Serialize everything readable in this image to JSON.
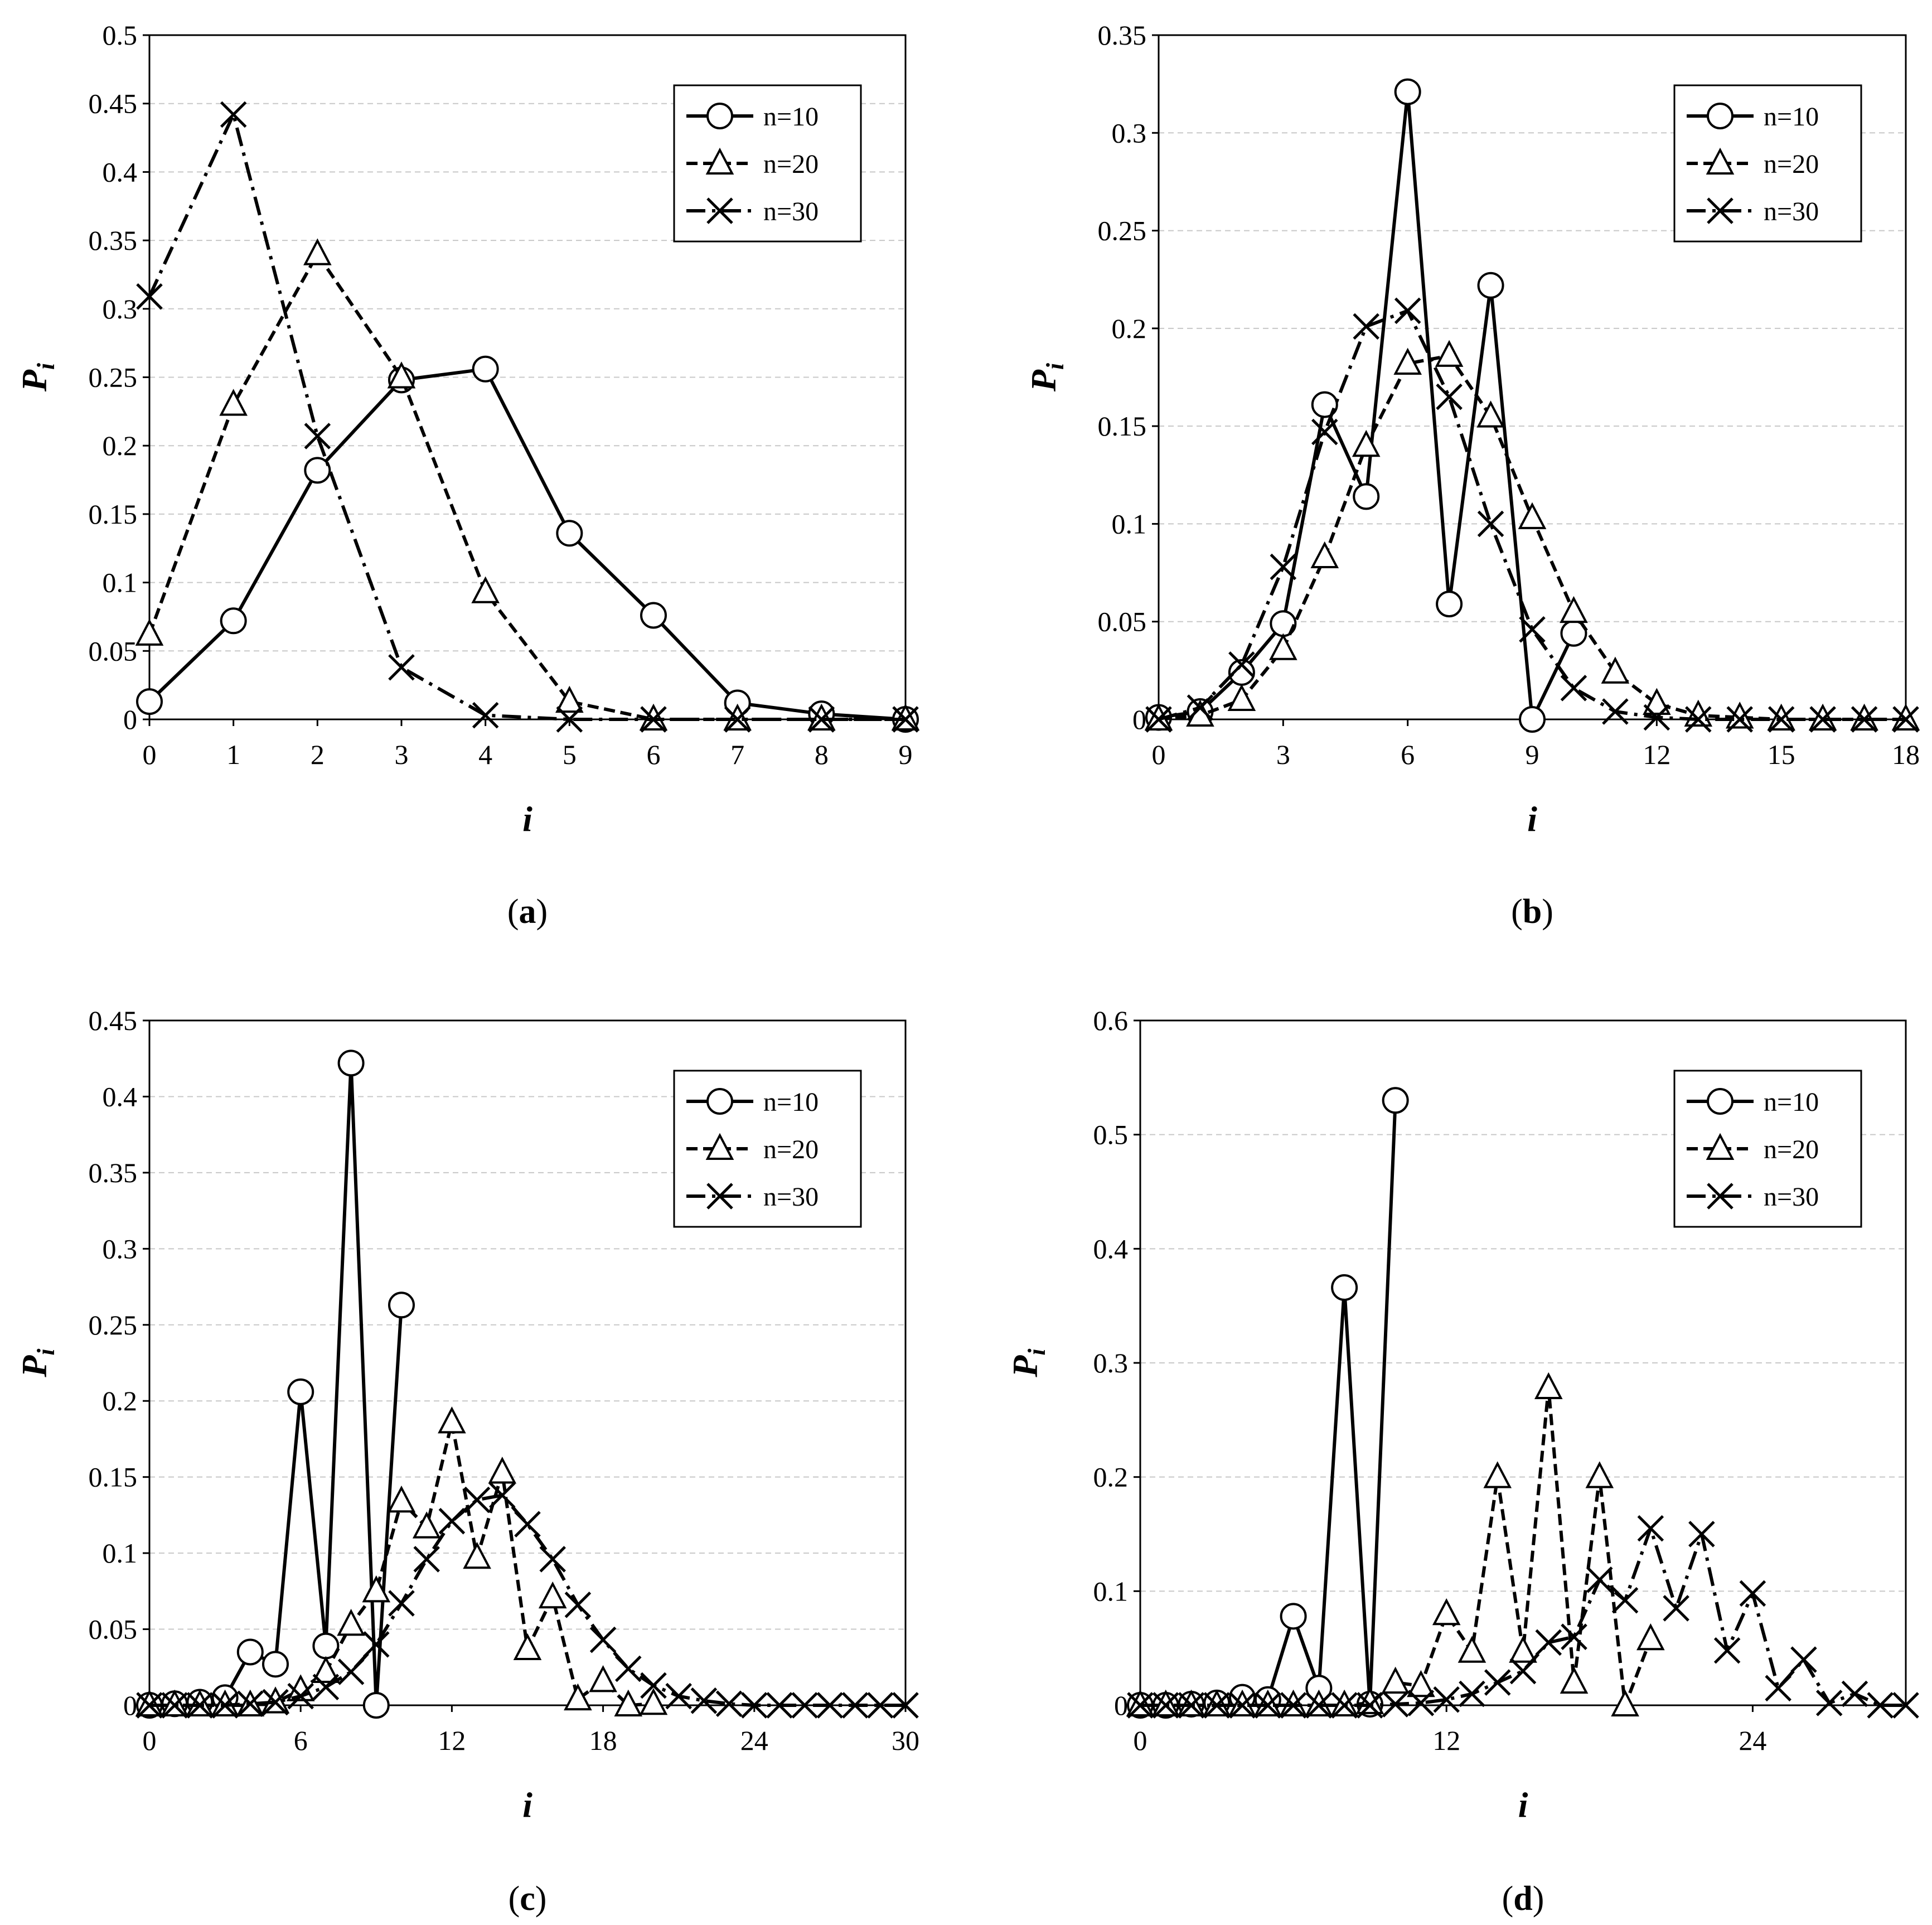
{
  "chart_data": [
    {
      "type": "line",
      "panel_label": "a",
      "xlabel": "i",
      "ylabel": "P",
      "ylabel_subscript": "i",
      "xlim": [
        0,
        9
      ],
      "ylim": [
        0,
        0.5
      ],
      "xticks": [
        "0",
        "1",
        "2",
        "3",
        "4",
        "5",
        "6",
        "7",
        "8",
        "9"
      ],
      "yticks": [
        "0",
        "0.05",
        "0.1",
        "0.15",
        "0.2",
        "0.25",
        "0.3",
        "0.35",
        "0.4",
        "0.45",
        "0.5"
      ],
      "grid": "horizontal",
      "legend_position": "top-right",
      "series": [
        {
          "name": "n=10",
          "marker": "circle",
          "line": "solid",
          "x": [
            0,
            1,
            2,
            3,
            4,
            5,
            6,
            7,
            8,
            9
          ],
          "values": [
            0.013,
            0.072,
            0.182,
            0.248,
            0.256,
            0.136,
            0.076,
            0.012,
            0.004,
            0.0
          ]
        },
        {
          "name": "n=20",
          "marker": "triangle",
          "line": "dashed",
          "x": [
            0,
            1,
            2,
            3,
            4,
            5,
            6,
            7,
            8,
            9
          ],
          "values": [
            0.062,
            0.23,
            0.34,
            0.25,
            0.093,
            0.013,
            0.0,
            0.0,
            0.0,
            0.0
          ]
        },
        {
          "name": "n=30",
          "marker": "x",
          "line": "dashdot",
          "x": [
            0,
            1,
            2,
            3,
            4,
            5,
            6,
            7,
            8,
            9
          ],
          "values": [
            0.309,
            0.442,
            0.207,
            0.038,
            0.003,
            0.0,
            0.0,
            0.0,
            0.0,
            0.0
          ]
        }
      ]
    },
    {
      "type": "line",
      "panel_label": "b",
      "xlabel": "i",
      "ylabel": "P",
      "ylabel_subscript": "i",
      "xlim": [
        0,
        18
      ],
      "ylim": [
        0,
        0.35
      ],
      "xticks": [
        "0",
        "3",
        "6",
        "9",
        "12",
        "15",
        "18"
      ],
      "yticks": [
        "0",
        "0.05",
        "0.1",
        "0.15",
        "0.2",
        "0.25",
        "0.3",
        "0.35"
      ],
      "grid": "horizontal",
      "legend_position": "top-right",
      "series": [
        {
          "name": "n=10",
          "marker": "circle",
          "line": "solid",
          "x": [
            0,
            1,
            2,
            3,
            4,
            5,
            6,
            7,
            8,
            9,
            10
          ],
          "values": [
            0.001,
            0.004,
            0.024,
            0.049,
            0.161,
            0.114,
            0.321,
            0.059,
            0.222,
            0.0,
            0.044
          ]
        },
        {
          "name": "n=20",
          "marker": "triangle",
          "line": "dashed",
          "x": [
            0,
            1,
            2,
            3,
            4,
            5,
            6,
            7,
            8,
            9,
            10,
            11,
            12,
            13,
            14,
            15,
            16,
            17,
            18
          ],
          "values": [
            0.0,
            0.002,
            0.01,
            0.036,
            0.083,
            0.14,
            0.182,
            0.186,
            0.155,
            0.103,
            0.055,
            0.024,
            0.008,
            0.002,
            0.001,
            0.0,
            0.0,
            0.0,
            0.0
          ]
        },
        {
          "name": "n=30",
          "marker": "x",
          "line": "dashdot",
          "x": [
            0,
            1,
            2,
            3,
            4,
            5,
            6,
            7,
            8,
            9,
            10,
            11,
            12,
            13,
            14,
            15,
            16,
            17,
            18
          ],
          "values": [
            0.0,
            0.006,
            0.028,
            0.078,
            0.147,
            0.201,
            0.209,
            0.165,
            0.1,
            0.046,
            0.016,
            0.004,
            0.001,
            0.0,
            0.0,
            0.0,
            0.0,
            0.0,
            0.0
          ]
        }
      ]
    },
    {
      "type": "line",
      "panel_label": "c",
      "xlabel": "i",
      "ylabel": "P",
      "ylabel_subscript": "i",
      "xlim": [
        0,
        30
      ],
      "ylim": [
        0,
        0.45
      ],
      "xticks": [
        "0",
        "6",
        "12",
        "18",
        "24",
        "30"
      ],
      "yticks": [
        "0",
        "0.05",
        "0.1",
        "0.15",
        "0.2",
        "0.25",
        "0.3",
        "0.35",
        "0.4",
        "0.45"
      ],
      "grid": "horizontal",
      "legend_position": "top-right",
      "series": [
        {
          "name": "n=10",
          "marker": "circle",
          "line": "solid",
          "x": [
            0,
            1,
            2,
            3,
            4,
            5,
            6,
            7,
            8,
            9,
            10
          ],
          "values": [
            0.0,
            0.001,
            0.002,
            0.005,
            0.035,
            0.027,
            0.206,
            0.039,
            0.422,
            0.0,
            0.263
          ]
        },
        {
          "name": "n=20",
          "marker": "triangle",
          "line": "dashed",
          "x": [
            0,
            1,
            2,
            3,
            4,
            5,
            6,
            7,
            8,
            9,
            10,
            11,
            12,
            13,
            14,
            15,
            16,
            17,
            18,
            19,
            20
          ],
          "values": [
            0.0,
            0.0,
            0.0,
            0.0,
            0.0,
            0.002,
            0.01,
            0.022,
            0.053,
            0.075,
            0.134,
            0.117,
            0.186,
            0.097,
            0.153,
            0.037,
            0.071,
            0.004,
            0.016,
            0.0,
            0.001
          ]
        },
        {
          "name": "n=30",
          "marker": "x",
          "line": "dashdot",
          "x": [
            0,
            1,
            2,
            3,
            4,
            5,
            6,
            7,
            8,
            9,
            10,
            11,
            12,
            13,
            14,
            15,
            16,
            17,
            18,
            19,
            20,
            21,
            22,
            23,
            24,
            25,
            26,
            27,
            28,
            29,
            30
          ],
          "values": [
            0.0,
            0.0,
            0.0,
            0.0,
            0.001,
            0.002,
            0.006,
            0.012,
            0.022,
            0.04,
            0.067,
            0.096,
            0.121,
            0.135,
            0.138,
            0.119,
            0.096,
            0.066,
            0.043,
            0.024,
            0.013,
            0.006,
            0.003,
            0.001,
            0.0,
            0.0,
            0.0,
            0.0,
            0.0,
            0.0,
            0.0
          ]
        }
      ]
    },
    {
      "type": "line",
      "panel_label": "d",
      "xlabel": "i",
      "ylabel": "P",
      "ylabel_subscript": "i",
      "xlim": [
        0,
        30
      ],
      "ylim": [
        0,
        0.6
      ],
      "xticks": [
        "0",
        "12",
        "24"
      ],
      "xtick_values": [
        0,
        12,
        24
      ],
      "yticks": [
        "0",
        "0.1",
        "0.2",
        "0.3",
        "0.4",
        "0.5",
        "0.6"
      ],
      "grid": "horizontal",
      "legend_position": "top-right",
      "series": [
        {
          "name": "n=10",
          "marker": "circle",
          "line": "solid",
          "x": [
            0,
            1,
            2,
            3,
            4,
            5,
            6,
            7,
            8,
            9,
            10
          ],
          "values": [
            0.0,
            0.0,
            0.001,
            0.002,
            0.007,
            0.005,
            0.078,
            0.015,
            0.366,
            0.001,
            0.53
          ]
        },
        {
          "name": "n=20",
          "marker": "triangle",
          "line": "dashed",
          "x": [
            0,
            1,
            2,
            3,
            4,
            5,
            6,
            7,
            8,
            9,
            10,
            11,
            12,
            13,
            14,
            15,
            16,
            17,
            18,
            19,
            20
          ],
          "values": [
            0.0,
            0.0,
            0.0,
            0.0,
            0.0,
            0.0,
            0.0,
            0.0,
            0.0,
            0.002,
            0.02,
            0.017,
            0.08,
            0.047,
            0.2,
            0.047,
            0.278,
            0.02,
            0.2,
            0.0,
            0.058
          ]
        },
        {
          "name": "n=30",
          "marker": "x",
          "line": "dashdot",
          "x": [
            0,
            1,
            2,
            3,
            4,
            5,
            6,
            7,
            8,
            9,
            10,
            11,
            12,
            13,
            14,
            15,
            16,
            17,
            18,
            19,
            20,
            21,
            22,
            23,
            24,
            25,
            26,
            27,
            28,
            29,
            30
          ],
          "values": [
            0.0,
            0.0,
            0.0,
            0.0,
            0.0,
            0.0,
            0.0,
            0.0,
            0.0,
            0.0,
            0.001,
            0.002,
            0.005,
            0.01,
            0.02,
            0.03,
            0.055,
            0.06,
            0.11,
            0.092,
            0.155,
            0.085,
            0.15,
            0.048,
            0.098,
            0.015,
            0.04,
            0.002,
            0.01,
            0.0,
            0.0
          ]
        }
      ]
    }
  ]
}
